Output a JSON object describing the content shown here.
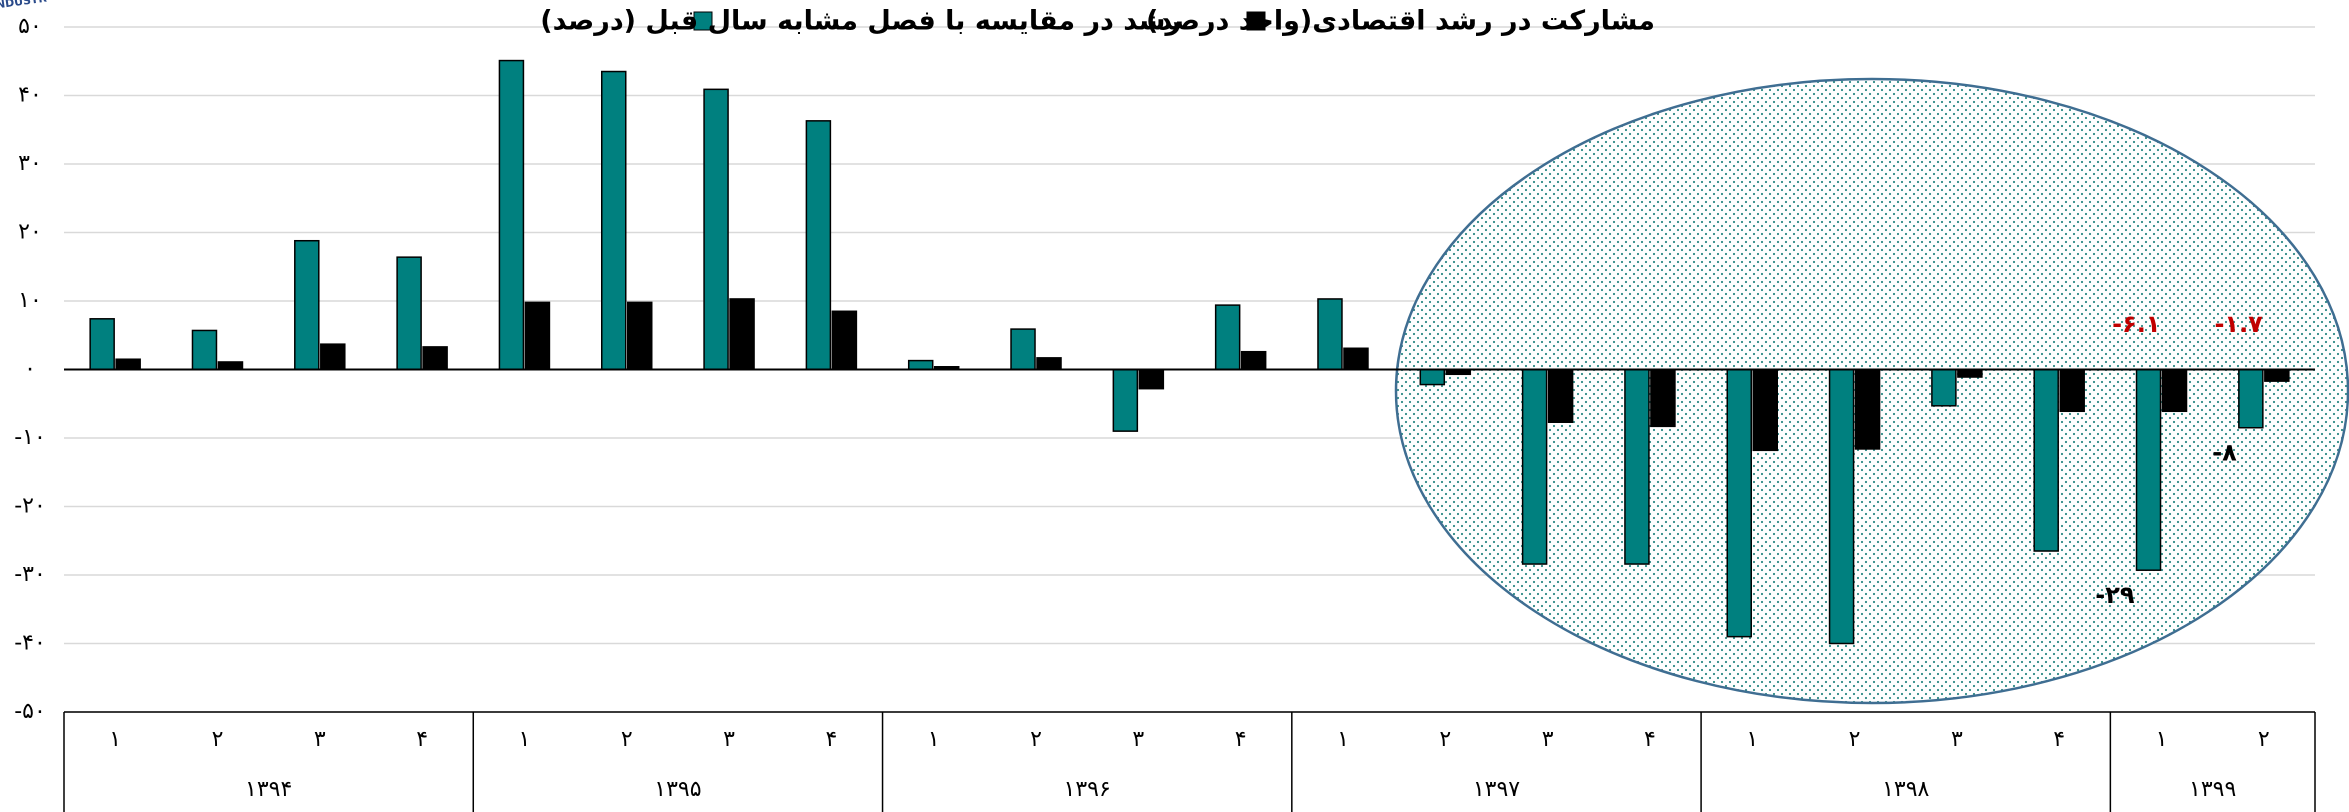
{
  "chart_data": {
    "type": "bar",
    "watermark": "NDUSTR",
    "groups": [
      {
        "label": "۱۳۹۴",
        "categories": [
          "۱",
          "۲",
          "۳",
          "۴"
        ]
      },
      {
        "label": "۱۳۹۵",
        "categories": [
          "۱",
          "۲",
          "۳",
          "۴"
        ]
      },
      {
        "label": "۱۳۹۶",
        "categories": [
          "۱",
          "۲",
          "۳",
          "۴"
        ]
      },
      {
        "label": "۱۳۹۷",
        "categories": [
          "۱",
          "۲",
          "۳",
          "۴"
        ]
      },
      {
        "label": "۱۳۹۸",
        "categories": [
          "۱",
          "۲",
          "۳",
          "۴"
        ]
      },
      {
        "label": "۱۳۹۹",
        "categories": [
          "۱",
          "۲"
        ]
      }
    ],
    "series": [
      {
        "name": "رشد در مقایسه با فصل مشابه سال قبل (درصد)",
        "color": "#00807f",
        "label_color": "#000000",
        "values": [
          7.4,
          5.7,
          18.8,
          16.4,
          45.1,
          43.5,
          40.9,
          36.3,
          1.3,
          5.9,
          -9.0,
          9.4,
          10.3,
          -2.2,
          -28.4,
          -28.4,
          -39,
          -40,
          -5.3,
          -26.5,
          -29.3,
          -8.5
        ],
        "value_labels": [
          null,
          null,
          null,
          null,
          null,
          null,
          null,
          null,
          null,
          null,
          null,
          null,
          null,
          null,
          null,
          null,
          null,
          null,
          null,
          null,
          "-۲۹",
          "-۸"
        ]
      },
      {
        "name": "مشارکت در رشد اقتصادی(واحد درصد)",
        "color": "#000000",
        "label_color": "#c00000",
        "values": [
          1.5,
          1.1,
          3.7,
          3.3,
          9.8,
          9.8,
          10.3,
          8.5,
          0.4,
          1.7,
          -2.8,
          2.6,
          3.1,
          -0.7,
          -7.7,
          -8.3,
          -11.8,
          -11.6,
          -1.1,
          -6.1,
          -6.1,
          -1.7
        ],
        "value_labels": [
          null,
          null,
          null,
          null,
          null,
          null,
          null,
          null,
          null,
          null,
          null,
          null,
          null,
          null,
          null,
          null,
          null,
          null,
          null,
          null,
          "-۶.۱",
          "-۱.۷"
        ]
      }
    ],
    "ylim": [
      -50,
      50
    ],
    "yticks": [
      {
        "value": -50,
        "label": "-۵۰"
      },
      {
        "value": -40,
        "label": "-۴۰"
      },
      {
        "value": -30,
        "label": "-۳۰"
      },
      {
        "value": -20,
        "label": "-۲۰"
      },
      {
        "value": -10,
        "label": "-۱۰"
      },
      {
        "value": 0,
        "label": "۰"
      },
      {
        "value": 10,
        "label": "۱۰"
      },
      {
        "value": 20,
        "label": "۲۰"
      },
      {
        "value": 30,
        "label": "۳۰"
      },
      {
        "value": 40,
        "label": "۴۰"
      },
      {
        "value": 50,
        "label": "۵۰"
      }
    ],
    "grid": true
  }
}
